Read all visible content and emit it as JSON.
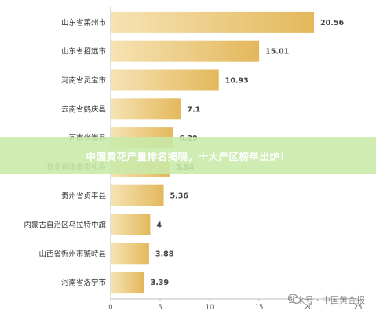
{
  "banner": {
    "text": "中国黄花产量排名揭晓，十大产区榜单出炉！"
  },
  "watermark": {
    "text": "公众号 · 中国黄金报",
    "icon": "wechat-icon"
  },
  "chart_data": {
    "type": "bar",
    "orientation": "horizontal",
    "categories": [
      "山东省莱州市",
      "山东省招远市",
      "河南省灵宝市",
      "云南省鹤庆县",
      "河南省嵩县",
      "甘肃省陇南市礼县",
      "贵州省贞丰县",
      "内蒙古自治区乌拉特中旗",
      "山西省忻州市繁峙县",
      "河南省洛宁市"
    ],
    "values": [
      20.56,
      15.01,
      10.93,
      7.1,
      6.29,
      5.94,
      5.36,
      4,
      3.88,
      3.39
    ],
    "value_labels": [
      "20.56",
      "15.01",
      "10.93",
      "7.1",
      "6.29",
      "5.94",
      "5.36",
      "4",
      "3.88",
      "3.39"
    ],
    "xlim": [
      0,
      25
    ],
    "xticks": [
      "0",
      "5",
      "10",
      "15",
      "20",
      "25"
    ],
    "bar_color_light": "#f6e3b4",
    "bar_color_dark": "#e3b85c",
    "grid": false,
    "title": "",
    "xlabel": "",
    "ylabel": ""
  }
}
